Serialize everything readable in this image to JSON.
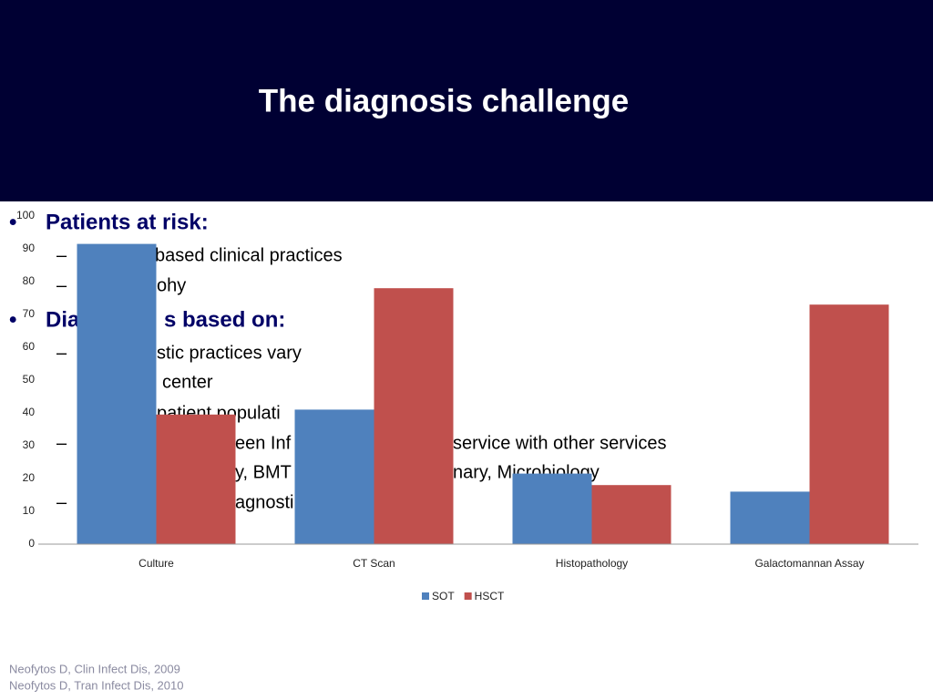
{
  "title": "The diagnosis challenge",
  "bullets": [
    {
      "marker": "•",
      "parts": [
        "Patients at risk:"
      ]
    },
    {
      "marker": "–",
      "parts": [
        "based clinical practices"
      ]
    },
    {
      "marker": "–",
      "parts": [
        "ohy"
      ]
    },
    {
      "marker": "•",
      "parts": [
        "Dia",
        "s based on:"
      ]
    },
    {
      "marker": "–",
      "parts": [
        "stic practices vary"
      ]
    },
    {
      "parts": [
        "center"
      ]
    },
    {
      "parts": [
        "patient populati"
      ]
    },
    {
      "marker": "–",
      "parts": [
        "een Inf",
        "service with other services"
      ]
    },
    {
      "parts": [
        "y, BMT",
        "nary, Microbiology"
      ]
    },
    {
      "marker": "–",
      "parts": [
        "agnosti"
      ]
    }
  ],
  "footnotes": [
    "Neofytos D, Clin Infect Dis, 2009",
    "Neofytos D, Tran Infect Dis, 2010"
  ],
  "chart_data": {
    "type": "bar",
    "categories": [
      "Culture",
      "CT Scan",
      "Histopathology",
      "Galactomannan Assay"
    ],
    "series": [
      {
        "name": "SOT",
        "color": "#4f81bd",
        "values": [
          91.5,
          41,
          21.5,
          16
        ]
      },
      {
        "name": "HSCT",
        "color": "#c0504d",
        "values": [
          39.5,
          78,
          18,
          73
        ]
      }
    ],
    "ylim": [
      0,
      100
    ],
    "yticks": [
      0,
      10,
      20,
      30,
      40,
      50,
      60,
      70,
      80,
      90,
      100
    ],
    "grid": false,
    "legend": "bottom"
  }
}
